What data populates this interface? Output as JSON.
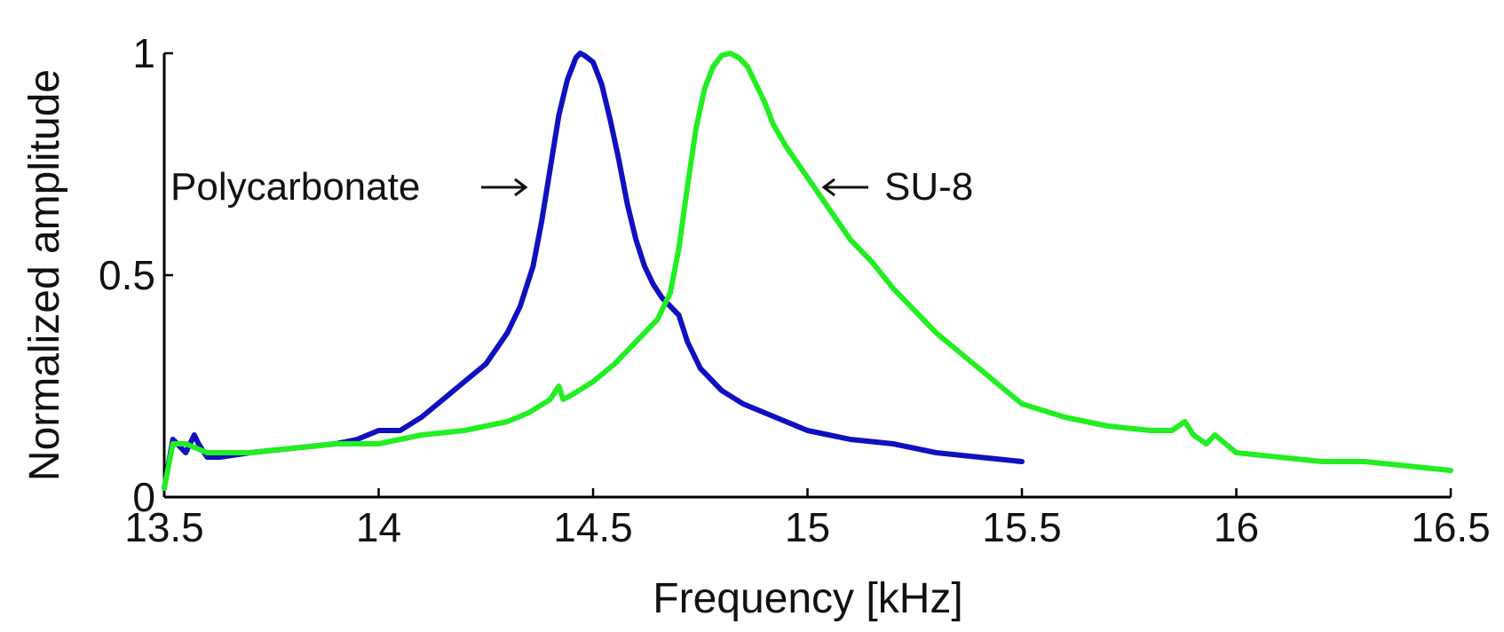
{
  "chart_data": {
    "type": "line",
    "title": "",
    "xlabel": "Frequency [kHz]",
    "ylabel": "Normalized amplitude",
    "xlim": [
      13.5,
      16.5
    ],
    "ylim": [
      0,
      1
    ],
    "xticks": [
      "13.5",
      "14",
      "14.5",
      "15",
      "15.5",
      "16",
      "16.5"
    ],
    "yticks": [
      "0",
      "0.5",
      "1"
    ],
    "grid": false,
    "annotations": [
      {
        "text": "Polycarbonate",
        "arrow": "right",
        "series": "Polycarbonate"
      },
      {
        "text": "SU-8",
        "arrow": "left",
        "series": "SU-8"
      }
    ],
    "series": [
      {
        "name": "Polycarbonate",
        "color": "#1010c0",
        "x": [
          13.5,
          13.52,
          13.55,
          13.57,
          13.58,
          13.6,
          13.63,
          13.7,
          13.8,
          13.9,
          13.95,
          14.0,
          14.05,
          14.1,
          14.15,
          14.2,
          14.25,
          14.3,
          14.33,
          14.36,
          14.38,
          14.4,
          14.42,
          14.44,
          14.46,
          14.47,
          14.48,
          14.5,
          14.52,
          14.54,
          14.56,
          14.58,
          14.6,
          14.62,
          14.64,
          14.66,
          14.68,
          14.7,
          14.72,
          14.75,
          14.8,
          14.85,
          14.9,
          14.95,
          15.0,
          15.05,
          15.1,
          15.2,
          15.3,
          15.4,
          15.5
        ],
        "y": [
          0.02,
          0.13,
          0.1,
          0.14,
          0.12,
          0.09,
          0.09,
          0.1,
          0.11,
          0.12,
          0.13,
          0.15,
          0.15,
          0.18,
          0.22,
          0.26,
          0.3,
          0.37,
          0.43,
          0.52,
          0.62,
          0.74,
          0.86,
          0.94,
          0.99,
          1.0,
          0.995,
          0.98,
          0.93,
          0.85,
          0.76,
          0.66,
          0.58,
          0.52,
          0.48,
          0.45,
          0.43,
          0.41,
          0.35,
          0.29,
          0.24,
          0.21,
          0.19,
          0.17,
          0.15,
          0.14,
          0.13,
          0.12,
          0.1,
          0.09,
          0.08
        ]
      },
      {
        "name": "SU-8",
        "color": "#22ee22",
        "x": [
          13.5,
          13.52,
          13.55,
          13.6,
          13.7,
          13.8,
          13.9,
          14.0,
          14.1,
          14.2,
          14.3,
          14.35,
          14.4,
          14.42,
          14.43,
          14.45,
          14.5,
          14.55,
          14.6,
          14.65,
          14.68,
          14.7,
          14.72,
          14.74,
          14.76,
          14.78,
          14.8,
          14.82,
          14.84,
          14.86,
          14.88,
          14.9,
          14.92,
          14.95,
          15.0,
          15.05,
          15.1,
          15.15,
          15.2,
          15.25,
          15.3,
          15.35,
          15.4,
          15.45,
          15.5,
          15.6,
          15.7,
          15.8,
          15.85,
          15.88,
          15.9,
          15.93,
          15.95,
          16.0,
          16.1,
          16.2,
          16.3,
          16.4,
          16.5
        ],
        "y": [
          0.02,
          0.12,
          0.12,
          0.1,
          0.1,
          0.11,
          0.12,
          0.12,
          0.14,
          0.15,
          0.17,
          0.19,
          0.22,
          0.25,
          0.22,
          0.23,
          0.26,
          0.3,
          0.35,
          0.4,
          0.46,
          0.56,
          0.7,
          0.83,
          0.92,
          0.97,
          0.995,
          1.0,
          0.99,
          0.97,
          0.93,
          0.89,
          0.84,
          0.79,
          0.72,
          0.65,
          0.58,
          0.53,
          0.47,
          0.42,
          0.37,
          0.33,
          0.29,
          0.25,
          0.21,
          0.18,
          0.16,
          0.15,
          0.15,
          0.17,
          0.14,
          0.12,
          0.14,
          0.1,
          0.09,
          0.08,
          0.08,
          0.07,
          0.06
        ]
      }
    ]
  }
}
